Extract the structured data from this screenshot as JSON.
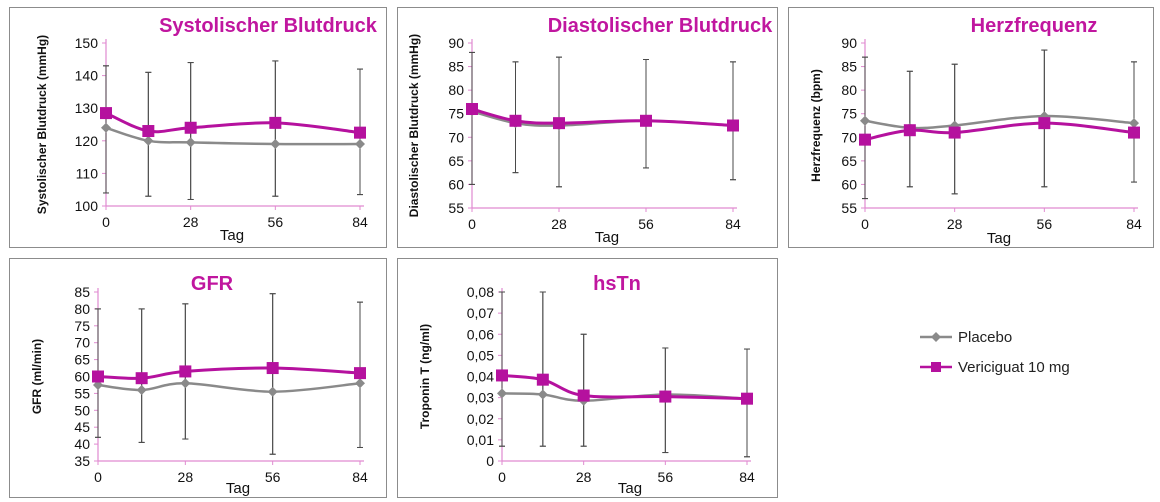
{
  "colors": {
    "placebo": "#8a8a8a",
    "vericiguat": "#b5119e",
    "title": "#c0169f",
    "axis": "#e08ad0"
  },
  "legend": [
    {
      "label": "Placebo",
      "color": "#8a8a8a",
      "marker": "diamond"
    },
    {
      "label": "Vericiguat 10 mg",
      "color": "#b5119e",
      "marker": "square"
    }
  ],
  "chart_data": [
    {
      "type": "line",
      "title": "Systolischer Blutdruck",
      "xlabel": "Tag",
      "ylabel": "Systolischer Blutdruck (mmHg)",
      "x": [
        0,
        14,
        28,
        56,
        84
      ],
      "xticks": [
        "0",
        "28",
        "56",
        "84"
      ],
      "xtick_values": [
        0,
        28,
        56,
        84
      ],
      "yticks": [
        "100",
        "110",
        "120",
        "130",
        "140",
        "150"
      ],
      "ylim": [
        100,
        150
      ],
      "series": [
        {
          "name": "Placebo",
          "values": [
            124,
            120,
            119.5,
            119,
            119
          ],
          "error_high": [
            143,
            141,
            144,
            144.5,
            142
          ],
          "error_low": [
            104,
            103,
            102,
            103,
            103.5
          ]
        },
        {
          "name": "Vericiguat 10 mg",
          "values": [
            128.5,
            123,
            124,
            125.5,
            122.5
          ],
          "error_high": [
            143,
            141,
            144,
            144.5,
            142
          ],
          "error_low": [
            104,
            103,
            102,
            103,
            103.5
          ]
        }
      ]
    },
    {
      "type": "line",
      "title": "Diastolischer Blutdruck",
      "xlabel": "Tag",
      "ylabel": "Diastolischer Blutdruck (mmHg)",
      "x": [
        0,
        14,
        28,
        56,
        84
      ],
      "xticks": [
        "0",
        "28",
        "56",
        "84"
      ],
      "xtick_values": [
        0,
        28,
        56,
        84
      ],
      "yticks": [
        "55",
        "60",
        "65",
        "70",
        "75",
        "80",
        "85",
        "90"
      ],
      "ylim": [
        55,
        90
      ],
      "series": [
        {
          "name": "Placebo",
          "values": [
            75.5,
            73,
            72.5,
            73.5,
            72.5
          ],
          "error_high": [
            88,
            86,
            87,
            86.5,
            86
          ],
          "error_low": [
            60,
            62.5,
            59.5,
            63.5,
            61
          ]
        },
        {
          "name": "Vericiguat 10 mg",
          "values": [
            76,
            73.5,
            73,
            73.5,
            72.5
          ],
          "error_high": [
            88,
            86,
            87,
            86.5,
            86
          ],
          "error_low": [
            60,
            62.5,
            59.5,
            63.5,
            61
          ]
        }
      ]
    },
    {
      "type": "line",
      "title": "Herzfrequenz",
      "xlabel": "Tag",
      "ylabel": "Herzfrequenz (bpm)",
      "x": [
        0,
        14,
        28,
        56,
        84
      ],
      "xticks": [
        "0",
        "28",
        "56",
        "84"
      ],
      "xtick_values": [
        0,
        28,
        56,
        84
      ],
      "yticks": [
        "55",
        "60",
        "65",
        "70",
        "75",
        "80",
        "85",
        "90"
      ],
      "ylim": [
        55,
        90
      ],
      "series": [
        {
          "name": "Placebo",
          "values": [
            73.5,
            72,
            72.5,
            74.5,
            73
          ],
          "error_high": [
            87,
            84,
            85.5,
            88.5,
            86
          ],
          "error_low": [
            57,
            59.5,
            58,
            59.5,
            60.5
          ]
        },
        {
          "name": "Vericiguat 10 mg",
          "values": [
            69.5,
            71.5,
            71,
            73,
            71
          ],
          "error_high": [
            87,
            84,
            85.5,
            88.5,
            86
          ],
          "error_low": [
            57,
            59.5,
            58,
            59.5,
            60.5
          ]
        }
      ]
    },
    {
      "type": "line",
      "title": "GFR",
      "xlabel": "Tag",
      "ylabel": "GFR (ml/min)",
      "x": [
        0,
        14,
        28,
        56,
        84
      ],
      "xticks": [
        "0",
        "28",
        "56",
        "84"
      ],
      "xtick_values": [
        0,
        28,
        56,
        84
      ],
      "yticks": [
        "35",
        "40",
        "45",
        "50",
        "55",
        "60",
        "65",
        "70",
        "75",
        "80",
        "85"
      ],
      "ylim": [
        35,
        85
      ],
      "series": [
        {
          "name": "Placebo",
          "values": [
            57.5,
            56,
            58,
            55.5,
            58
          ],
          "error_high": [
            80,
            80,
            81.5,
            84.5,
            82
          ],
          "error_low": [
            42,
            40.5,
            41.5,
            37,
            39
          ]
        },
        {
          "name": "Vericiguat 10 mg",
          "values": [
            60,
            59.5,
            61.5,
            62.5,
            61
          ],
          "error_high": [
            80,
            80,
            81.5,
            84.5,
            82
          ],
          "error_low": [
            42,
            40.5,
            41.5,
            37,
            39
          ]
        }
      ]
    },
    {
      "type": "line",
      "title": "hsTn",
      "xlabel": "Tag",
      "ylabel": "Troponin T (ng/ml)",
      "x": [
        0,
        14,
        28,
        56,
        84
      ],
      "xticks": [
        "0",
        "28",
        "56",
        "84"
      ],
      "xtick_values": [
        0,
        28,
        56,
        84
      ],
      "yticks": [
        "0",
        "0,01",
        "0,02",
        "0,03",
        "0,04",
        "0,05",
        "0,06",
        "0,07",
        "0,08"
      ],
      "ylim": [
        0,
        0.08
      ],
      "series": [
        {
          "name": "Placebo",
          "values": [
            0.032,
            0.0315,
            0.0285,
            0.0315,
            0.0295
          ],
          "error_high": [
            0.08,
            0.08,
            0.06,
            0.0535,
            0.053
          ],
          "error_low": [
            0.007,
            0.007,
            0.007,
            0.004,
            0.002
          ]
        },
        {
          "name": "Vericiguat 10 mg",
          "values": [
            0.0405,
            0.0385,
            0.031,
            0.0305,
            0.0295
          ],
          "error_high": [
            0.08,
            0.08,
            0.06,
            0.0535,
            0.053
          ],
          "error_low": [
            0.007,
            0.007,
            0.007,
            0.004,
            0.002
          ]
        }
      ]
    }
  ]
}
